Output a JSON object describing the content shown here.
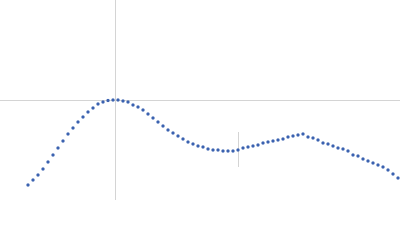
{
  "chart_data": {
    "type": "scatter",
    "x": [
      28,
      33,
      38,
      43,
      48,
      53,
      58,
      63,
      68,
      73,
      78,
      83,
      88,
      93,
      98,
      103,
      108,
      113,
      118,
      123,
      128,
      133,
      138,
      143,
      148,
      153,
      158,
      163,
      168,
      173,
      178,
      183,
      188,
      193,
      198,
      203,
      208,
      213,
      218,
      223,
      228,
      233,
      238,
      243,
      248,
      253,
      258,
      263,
      268,
      273,
      278,
      283,
      288,
      293,
      298,
      303,
      308,
      313,
      318,
      323,
      328,
      333,
      338,
      343,
      348,
      353,
      358,
      363,
      368,
      373,
      378,
      383,
      388,
      393,
      398
    ],
    "series": [
      {
        "color": "#3b62b0",
        "values": [
          15,
          20,
          25,
          31,
          38,
          45,
          52,
          59,
          66,
          72,
          78,
          83,
          88,
          92,
          96,
          98,
          99.5,
          100,
          100,
          99,
          98,
          95,
          93,
          90,
          86,
          82,
          78,
          74,
          70,
          67,
          64,
          61,
          58,
          56,
          54,
          53,
          51,
          50,
          50,
          49,
          49,
          49,
          50,
          52,
          53,
          54,
          55,
          57,
          58,
          59,
          60,
          61,
          63,
          64,
          65,
          66,
          63,
          62,
          60,
          57,
          56,
          54,
          52,
          51,
          49,
          45,
          44,
          41,
          39,
          37,
          35,
          33,
          30,
          26,
          22
        ]
      }
    ],
    "xlim": [
      0,
      400
    ],
    "ylim": [
      0,
      200
    ]
  }
}
